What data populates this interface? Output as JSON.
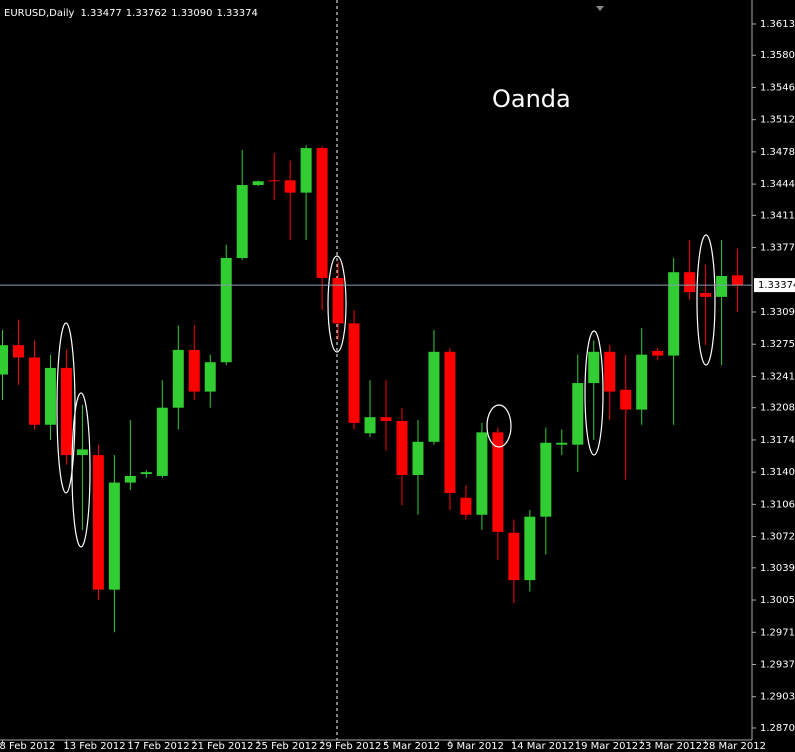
{
  "chart_data": {
    "type": "candlestick",
    "header": "EURUSD,Daily",
    "header_ohlc": [
      "1.33477",
      "1.33762",
      "1.33090",
      "1.33374"
    ],
    "annotation": "Oanda",
    "categories": [
      "8 Feb 2012",
      null,
      null,
      null,
      "13 Feb 2012",
      null,
      null,
      null,
      "17 Feb 2012",
      null,
      null,
      null,
      "21 Feb 2012",
      null,
      null,
      null,
      "25 Feb 2012",
      null,
      null,
      null,
      "29 Feb 2012",
      null,
      null,
      null,
      "5 Mar 2012",
      null,
      null,
      null,
      "9 Mar 2012",
      null,
      null,
      null,
      "14 Mar 2012",
      null,
      null,
      null,
      "19 Mar 2012",
      null,
      null,
      null,
      "23 Mar 2012",
      null,
      null,
      null,
      "28 Mar 2012",
      null,
      null
    ],
    "open": [
      1.3243,
      1.3274,
      1.3261,
      1.319,
      1.325,
      1.3158,
      1.3158,
      1.3016,
      1.3129,
      1.3138,
      1.3136,
      1.3208,
      1.3269,
      1.3225,
      1.3256,
      1.3366,
      1.3443,
      1.3448,
      1.3448,
      1.3435,
      1.3482,
      1.3345,
      1.3297,
      1.3181,
      1.3198,
      1.3194,
      1.3137,
      1.3172,
      1.3267,
      1.3113,
      1.3095,
      1.3182,
      1.3076,
      1.3026,
      1.3093,
      1.3169,
      1.3169,
      1.3234,
      1.3267,
      1.3227,
      1.3206,
      1.3268,
      1.3263,
      1.3351,
      1.3329,
      1.3325,
      1.33477
    ],
    "high": [
      1.329,
      1.3301,
      1.3279,
      1.3264,
      1.3269,
      1.3211,
      1.3169,
      1.3158,
      1.3195,
      1.3142,
      1.3237,
      1.3295,
      1.3295,
      1.3264,
      1.338,
      1.348,
      1.3448,
      1.3477,
      1.3469,
      1.3485,
      1.3484,
      1.3362,
      1.3311,
      1.3237,
      1.3237,
      1.3208,
      1.3195,
      1.329,
      1.3271,
      1.3126,
      1.3192,
      1.3187,
      1.309,
      1.31,
      1.3187,
      1.3185,
      1.3264,
      1.3279,
      1.3274,
      1.3264,
      1.3292,
      1.3271,
      1.3366,
      1.3385,
      1.3359,
      1.3385,
      1.33762
    ],
    "low": [
      1.3216,
      1.3232,
      1.3185,
      1.3174,
      1.3148,
      1.3079,
      1.3005,
      1.2971,
      1.3121,
      1.3134,
      1.3134,
      1.3185,
      1.3216,
      1.3208,
      1.3253,
      1.3364,
      1.3442,
      1.3427,
      1.3385,
      1.3385,
      1.3311,
      1.3279,
      1.3185,
      1.3177,
      1.3163,
      1.3105,
      1.3095,
      1.3169,
      1.31,
      1.309,
      1.3079,
      1.3047,
      1.3002,
      1.3014,
      1.3053,
      1.3158,
      1.314,
      1.3174,
      1.3195,
      1.3132,
      1.319,
      1.3258,
      1.319,
      1.3322,
      1.3274,
      1.3253,
      1.3309
    ],
    "close": [
      1.3274,
      1.3261,
      1.319,
      1.325,
      1.3158,
      1.3164,
      1.3016,
      1.3129,
      1.3136,
      1.314,
      1.3208,
      1.3269,
      1.3225,
      1.3256,
      1.3366,
      1.3443,
      1.3447,
      1.3447,
      1.3435,
      1.3482,
      1.3345,
      1.3297,
      1.3192,
      1.3198,
      1.3194,
      1.3137,
      1.3172,
      1.3267,
      1.3118,
      1.3095,
      1.3182,
      1.3077,
      1.3026,
      1.3093,
      1.3171,
      1.3171,
      1.3234,
      1.3267,
      1.3225,
      1.3206,
      1.3264,
      1.3263,
      1.3351,
      1.333,
      1.3325,
      1.3347,
      1.33374
    ],
    "up_color": "#32cd32",
    "down_color": "#ff0000",
    "current_price": {
      "value": 1.33374,
      "label": "1.33374"
    },
    "ylim": [
      1.28573,
      1.36383
    ],
    "yticks": [
      {
        "value": 1.3613,
        "label": "1.36130"
      },
      {
        "value": 1.358,
        "label": "1.35800"
      },
      {
        "value": 1.3546,
        "label": "1.35460"
      },
      {
        "value": 1.3512,
        "label": "1.35120"
      },
      {
        "value": 1.3478,
        "label": "1.34780"
      },
      {
        "value": 1.3444,
        "label": "1.34440"
      },
      {
        "value": 1.3411,
        "label": "1.34110"
      },
      {
        "value": 1.3377,
        "label": "1.33770"
      },
      {
        "value": 1.3309,
        "label": "1.33090"
      },
      {
        "value": 1.3275,
        "label": "1.32750"
      },
      {
        "value": 1.3241,
        "label": "1.32410"
      },
      {
        "value": 1.3208,
        "label": "1.32080"
      },
      {
        "value": 1.3174,
        "label": "1.31740"
      },
      {
        "value": 1.314,
        "label": "1.31400"
      },
      {
        "value": 1.3106,
        "label": "1.31060"
      },
      {
        "value": 1.3072,
        "label": "1.30720"
      },
      {
        "value": 1.3039,
        "label": "1.30390"
      },
      {
        "value": 1.3005,
        "label": "1.30050"
      },
      {
        "value": 1.2971,
        "label": "1.29710"
      },
      {
        "value": 1.2937,
        "label": "1.29370"
      },
      {
        "value": 1.2903,
        "label": "1.29030"
      },
      {
        "value": 1.287,
        "label": "1.28700"
      }
    ]
  }
}
